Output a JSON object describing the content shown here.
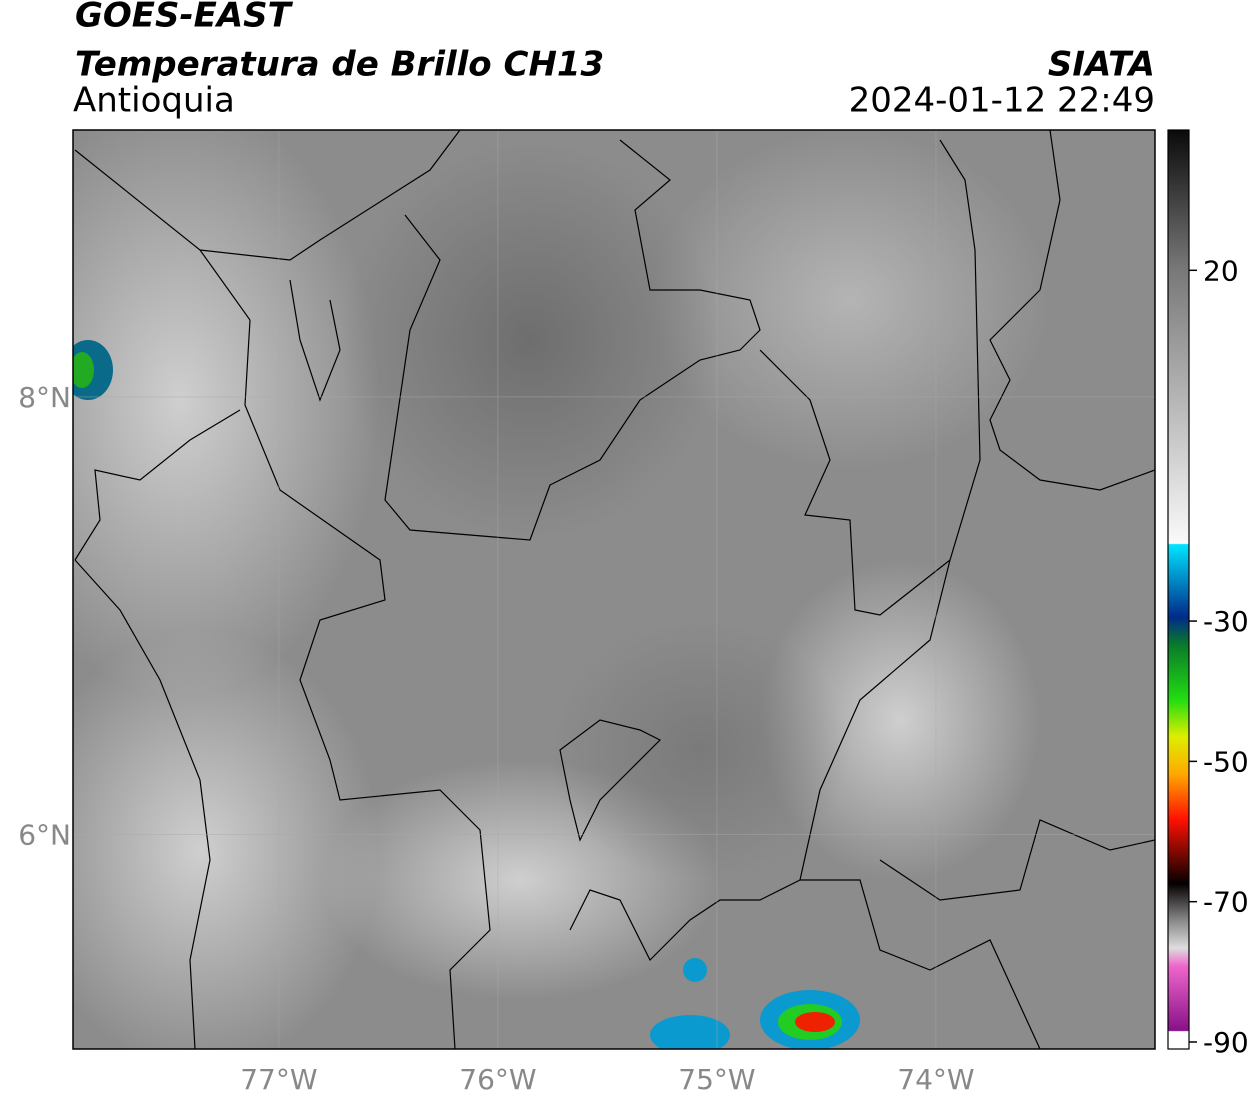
{
  "header": {
    "satellite": "GOES-EAST",
    "product": "Temperatura de Brillo CH13",
    "region": "Antioquia",
    "source": "SIATA",
    "timestamp": "2024-01-12 22:49"
  },
  "map": {
    "xlim": [
      -77.94,
      -73
    ],
    "ylim": [
      5.02,
      9.22
    ],
    "xticks": [
      {
        "value": -77,
        "label": "77°W"
      },
      {
        "value": -76,
        "label": "76°W"
      },
      {
        "value": -75,
        "label": "75°W"
      },
      {
        "value": -74,
        "label": "74°W"
      }
    ],
    "yticks": [
      {
        "value": 8,
        "label": "8°N"
      },
      {
        "value": 6,
        "label": "6°N"
      }
    ],
    "grid": true
  },
  "colorbar": {
    "range": [
      -91,
      40
    ],
    "ticks": [
      20,
      -30,
      -50,
      -70,
      -90
    ]
  }
}
